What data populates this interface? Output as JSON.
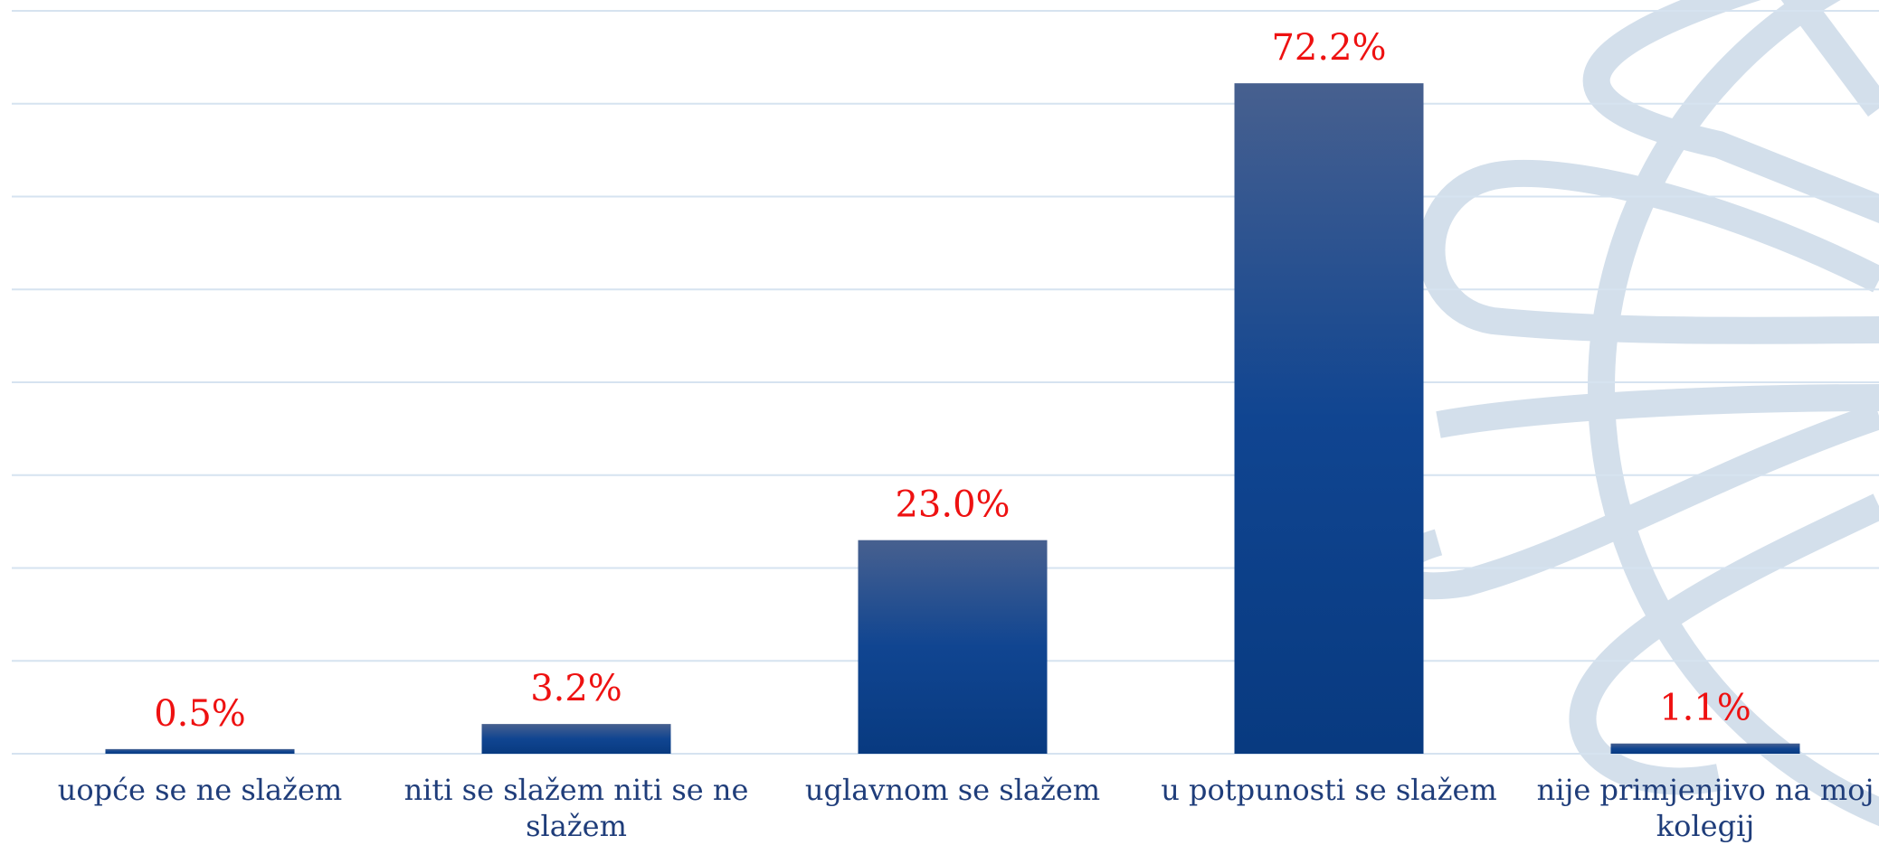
{
  "chart_data": {
    "type": "bar",
    "categories": [
      "uopće se ne slažem",
      "niti se slažem niti se ne slažem",
      "uglavnom se slažem",
      "u potpunosti se slažem",
      "nije primjenjivo na moj kolegij"
    ],
    "values": [
      0.5,
      3.2,
      23.0,
      72.2,
      1.1
    ],
    "value_labels": [
      "0.5%",
      "3.2%",
      "23.0%",
      "72.2%",
      "1.1%"
    ],
    "color": "#083a80",
    "ylim": [
      0,
      80
    ],
    "yticks": [
      0,
      10,
      20,
      30,
      40,
      50,
      60,
      70,
      80
    ],
    "grid": true
  }
}
